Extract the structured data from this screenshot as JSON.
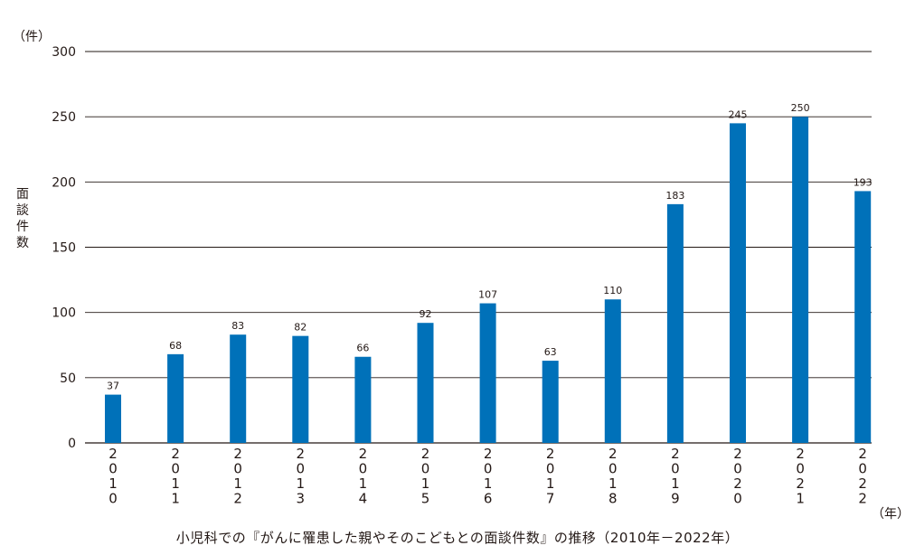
{
  "chart_data": {
    "type": "bar",
    "categories": [
      "2010",
      "2011",
      "2012",
      "2013",
      "2014",
      "2015",
      "2016",
      "2017",
      "2018",
      "2019",
      "2020",
      "2021",
      "2022"
    ],
    "values": [
      37,
      68,
      83,
      82,
      66,
      92,
      107,
      63,
      110,
      183,
      245,
      250,
      193
    ],
    "title": "小児科での『がんに罹患した親やそのこどもとの面談件数』の推移（2010年－2022年）",
    "ylabel": "面談件数",
    "y_unit": "（件）",
    "x_unit": "（年）",
    "ylim": [
      0,
      300
    ],
    "yticks": [
      "0",
      "50",
      "100",
      "150",
      "200",
      "250",
      "300"
    ],
    "grid": true,
    "data_labels": true,
    "bar_color": "#0071b9"
  }
}
